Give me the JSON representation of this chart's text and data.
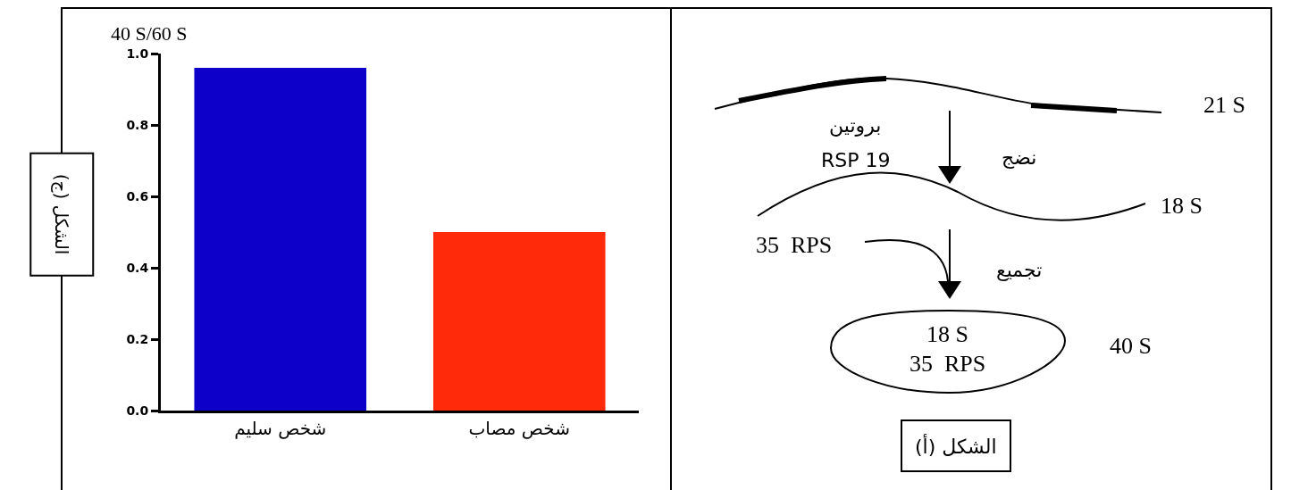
{
  "chart_data": [
    {
      "type": "bar",
      "categories": [
        "شخص سليم",
        "شخص مصاب"
      ],
      "values": [
        0.96,
        0.5
      ],
      "colors": [
        "#0d00c8",
        "#ff2a0a"
      ],
      "ylabel": "40 S/60 S",
      "ylim": [
        0,
        1
      ],
      "yticks": [
        {
          "value": 0,
          "label": "0.0"
        },
        {
          "value": 0.2,
          "label": "0.2"
        },
        {
          "value": 0.4,
          "label": "0.4"
        },
        {
          "value": 0.6,
          "label": "0.6"
        },
        {
          "value": 0.8,
          "label": "0.8"
        },
        {
          "value": 1,
          "label": "1.0"
        }
      ],
      "annotations": [
        "الشكل (ج)"
      ]
    },
    {
      "type": "other",
      "annotations": [
        "21 S",
        "بروتين",
        "RSP 19",
        "نضج",
        "18 S",
        "35  RPS",
        "تجميع",
        "18 S",
        "35  RPS",
        "40 S",
        "الشكل (أ)"
      ]
    }
  ]
}
